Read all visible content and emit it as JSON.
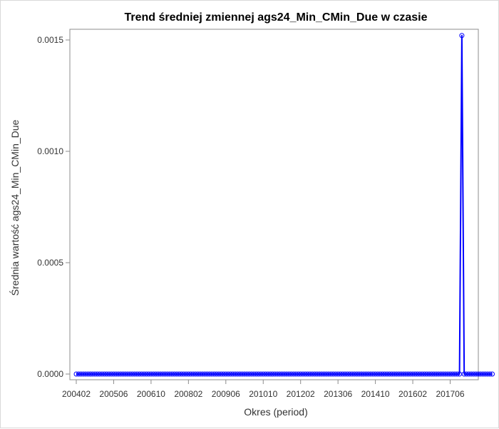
{
  "chart_data": {
    "type": "line",
    "title": "Trend średniej zmiennej ags24_Min_CMin_Due w czasie",
    "xlabel": "Okres (period)",
    "ylabel": "Średnia wartość ags24_Min_CMin_Due",
    "x_tick_labels": [
      "200402",
      "200506",
      "200610",
      "200802",
      "200906",
      "201010",
      "201202",
      "201306",
      "201410",
      "201602",
      "201706"
    ],
    "y_ticks": [
      "0.0000",
      "0.0005",
      "0.0010",
      "0.0015"
    ],
    "ylim": [
      0,
      0.0015
    ],
    "x_start": "200402",
    "x_end": "201812",
    "series": [
      {
        "color": "#0000ff",
        "spikes": [
          {
            "period": "201711",
            "value": 0.00152
          }
        ],
        "baseline_value": 0
      }
    ],
    "grid": false
  }
}
